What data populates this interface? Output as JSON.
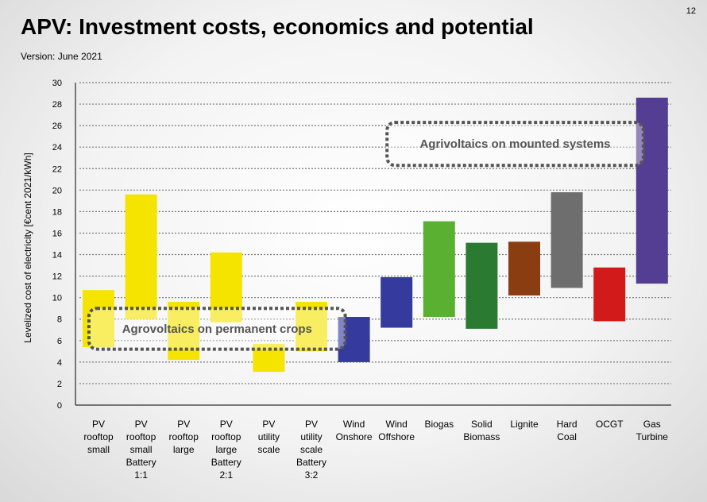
{
  "page": {
    "title": "APV: Investment costs, economics and potential",
    "version": "Version: June 2021",
    "page_number": "12"
  },
  "chart_data": {
    "type": "bar",
    "title": "",
    "xlabel": "",
    "ylabel": "Levelized cost of electricity [€cent 2021/kWh]",
    "ylim": [
      0,
      30
    ],
    "yticks": [
      0,
      2,
      4,
      6,
      8,
      10,
      12,
      14,
      16,
      18,
      20,
      22,
      24,
      26,
      28,
      30
    ],
    "grid": true,
    "categories": [
      "PV rooftop small",
      "PV rooftop small Battery 1:1",
      "PV rooftop large",
      "PV rooftop large Battery 2:1",
      "PV utility scale",
      "PV utility scale Battery 3:2",
      "Wind Onshore",
      "Wind Offshore",
      "Biogas",
      "Solid Biomass",
      "Lignite",
      "Hard Coal",
      "OCGT",
      "Gas Turbine"
    ],
    "category_label_lines": [
      [
        "PV",
        "rooftop",
        "small"
      ],
      [
        "PV",
        "rooftop",
        "small",
        "Battery",
        "1:1"
      ],
      [
        "PV",
        "rooftop",
        "large"
      ],
      [
        "PV",
        "rooftop",
        "large",
        "Battery",
        "2:1"
      ],
      [
        "PV",
        "utility",
        "scale"
      ],
      [
        "PV",
        "utility",
        "scale",
        "Battery",
        "3:2"
      ],
      [
        "Wind",
        "Onshore"
      ],
      [
        "Wind",
        "Offshore"
      ],
      [
        "Biogas"
      ],
      [
        "Solid",
        "Biomass"
      ],
      [
        "Lignite"
      ],
      [
        "Hard",
        "Coal"
      ],
      [
        "OCGT"
      ],
      [
        "Gas",
        "Turbine"
      ]
    ],
    "ranges": [
      [
        5.4,
        10.7
      ],
      [
        8.0,
        19.6
      ],
      [
        4.2,
        9.6
      ],
      [
        7.7,
        14.2
      ],
      [
        3.1,
        5.7
      ],
      [
        5.0,
        9.6
      ],
      [
        4.0,
        8.2
      ],
      [
        7.2,
        11.9
      ],
      [
        8.2,
        17.1
      ],
      [
        7.1,
        15.1
      ],
      [
        10.2,
        15.2
      ],
      [
        10.9,
        19.8
      ],
      [
        7.8,
        12.8
      ],
      [
        11.3,
        28.6
      ]
    ],
    "colors": [
      "#f5e400",
      "#f5e400",
      "#f5e400",
      "#f5e400",
      "#f5e400",
      "#f5e400",
      "#353a9e",
      "#353a9e",
      "#5ab030",
      "#2b7a32",
      "#8b3d12",
      "#6e6e6e",
      "#d11a1a",
      "#543e93"
    ],
    "annotations": [
      {
        "text": "Agrovoltaics on permanent crops",
        "category_span": [
          0,
          6
        ],
        "y_range": [
          5.2,
          9.0
        ]
      },
      {
        "text": "Agrivoltaics on mounted systems",
        "category_span": [
          7,
          13
        ],
        "y_range": [
          22.3,
          26.3
        ]
      }
    ]
  }
}
